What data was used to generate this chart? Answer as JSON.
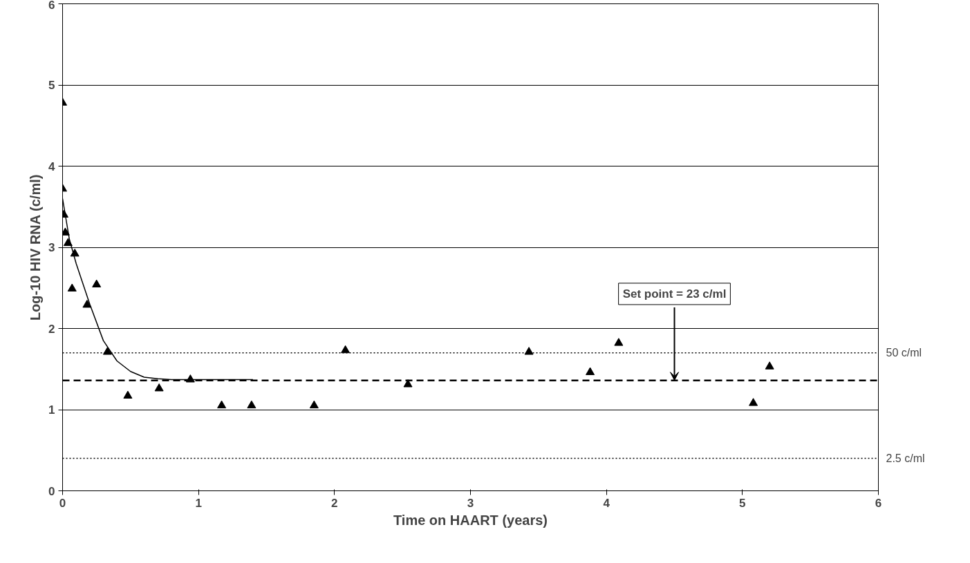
{
  "chart_data": {
    "type": "scatter",
    "xlabel": "Time on HAART (years)",
    "ylabel": "Log-10 HIV RNA (c/ml)",
    "xlim": [
      0,
      6
    ],
    "ylim": [
      0,
      6
    ],
    "xticks": [
      0,
      1,
      2,
      3,
      4,
      5,
      6
    ],
    "yticks": [
      0,
      1,
      2,
      3,
      4,
      5,
      6
    ],
    "grid": "y",
    "series": [
      {
        "marker": "triangle",
        "color": "#000000",
        "x": [
          0,
          0,
          0.01,
          0.02,
          0.04,
          0.09,
          0.07,
          0.25,
          0.18,
          0.33,
          0.48,
          0.71,
          0.94,
          1.17,
          1.39,
          1.85,
          2.08,
          2.54,
          3.43,
          3.88,
          4.09,
          5.08,
          5.2
        ],
        "values": [
          4.78,
          3.72,
          3.4,
          3.18,
          3.05,
          2.92,
          2.49,
          2.54,
          2.29,
          1.71,
          1.17,
          1.26,
          1.37,
          1.05,
          1.05,
          1.05,
          1.73,
          1.31,
          1.71,
          1.46,
          1.82,
          1.08,
          1.53
        ]
      },
      {
        "type": "line",
        "color": "#000000",
        "x": [
          0,
          0.05,
          0.1,
          0.2,
          0.3,
          0.4,
          0.5,
          0.6,
          0.7,
          0.8,
          1.4
        ],
        "values": [
          3.6,
          3.1,
          2.8,
          2.3,
          1.85,
          1.6,
          1.47,
          1.4,
          1.38,
          1.37,
          1.37
        ]
      }
    ],
    "ref_lines": [
      {
        "axis": "y",
        "value": 1.7,
        "label": "50 c/ml",
        "line_style": "dotted"
      },
      {
        "axis": "y",
        "value": 0.4,
        "label": "2.5 c/ml",
        "line_style": "dotted"
      },
      {
        "axis": "y",
        "value": 1.36,
        "label": null,
        "line_style": "dashed"
      }
    ],
    "annotations": [
      {
        "text": "Set point = 23 c/ml",
        "x": 4.5,
        "y": 1.36
      }
    ]
  }
}
